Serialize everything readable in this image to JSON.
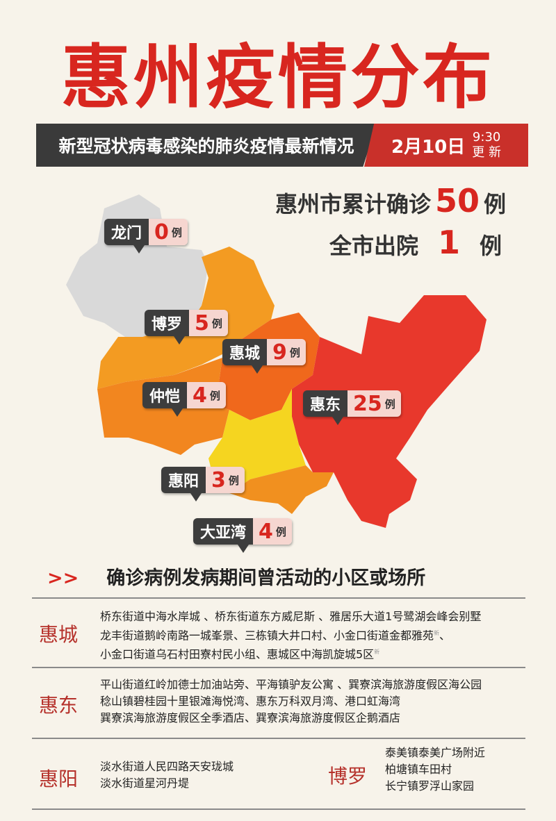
{
  "title": "惠州疫情分布",
  "subtitle": "新型冠状病毒感染的肺炎疫情最新情况",
  "date": "2月10日",
  "time": "9:30",
  "update": "更 新",
  "stats": {
    "confirmed_prefix": "惠州市累计确诊",
    "confirmed": "50",
    "confirmed_unit": "例",
    "discharged_prefix": "全市出院",
    "discharged": "1",
    "discharged_unit": "例"
  },
  "map": {
    "colors": {
      "longmen": "#d9d9d9",
      "boluo": "#f39b22",
      "huicheng": "#f0681c",
      "zhongkai": "#f2861f",
      "huidong": "#e8382c",
      "huiyang": "#f5d520",
      "dayawan": "#f1901f"
    },
    "regions": [
      {
        "name": "龙门",
        "count": "0",
        "unit": "例"
      },
      {
        "name": "博罗",
        "count": "5",
        "unit": "例"
      },
      {
        "name": "惠城",
        "count": "9",
        "unit": "例"
      },
      {
        "name": "仲恺",
        "count": "4",
        "unit": "例"
      },
      {
        "name": "惠东",
        "count": "25",
        "unit": "例"
      },
      {
        "name": "惠阳",
        "count": "3",
        "unit": "例"
      },
      {
        "name": "大亚湾",
        "count": "4",
        "unit": "例"
      }
    ]
  },
  "section": {
    "arrow": ">>",
    "title": "确诊病例发病期间曾活动的小区或场所"
  },
  "places": [
    {
      "district": "惠城",
      "lines": [
        "桥东街道中海水岸城 、桥东街道东方威尼斯 、雅居乐大道1号鹭湖会峰会别墅",
        "龙丰街道鹅岭南路一城峯景、三栋镇大井口村、小金口街道金都雅苑",
        "小金口街道乌石村田寮村民小组、惠城区中海凯旋城5区"
      ],
      "new_mark": "新"
    },
    {
      "district": "惠东",
      "lines": [
        "平山街道红岭加德士加油站旁、平海镇驴友公寓 、巽寮滨海旅游度假区海公园",
        "稔山镇碧桂园十里银滩海悦湾、惠东万科双月湾、港口虹海湾",
        "巽寮滨海旅游度假区全季酒店、巽寮滨海旅游度假区企鹅酒店"
      ]
    },
    {
      "district": "惠阳",
      "lines": [
        "淡水街道人民四路天安珑城",
        "淡水街道星河丹堤"
      ]
    },
    {
      "district": "博罗",
      "lines": [
        "泰美镇泰美广场附近",
        "柏塘镇车田村",
        "长宁镇罗浮山家园"
      ]
    }
  ]
}
